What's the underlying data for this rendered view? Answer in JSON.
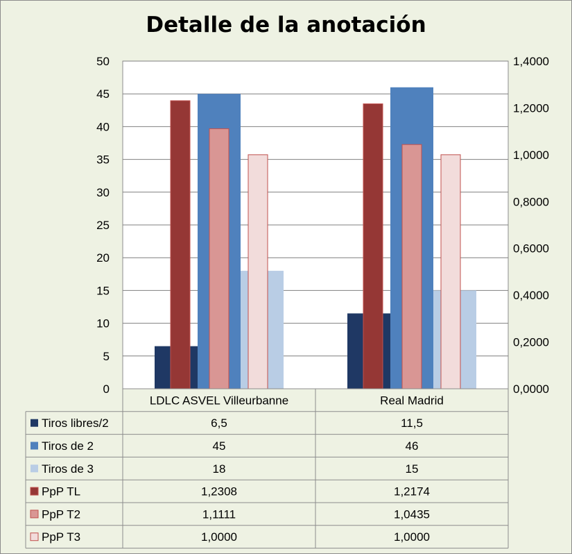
{
  "chart_data": {
    "type": "bar",
    "title": "Detalle de la anotación",
    "categories": [
      "LDLC ASVEL Villeurbanne",
      "Real Madrid"
    ],
    "series": [
      {
        "name": "Tiros libres/2",
        "values": [
          6.5,
          11.5
        ],
        "labels": [
          "6,5",
          "11,5"
        ],
        "axis": "left",
        "color": "#1f3864"
      },
      {
        "name": "Tiros de 2",
        "values": [
          45,
          46
        ],
        "labels": [
          "45",
          "46"
        ],
        "axis": "left",
        "color": "#4f81bd"
      },
      {
        "name": "Tiros de 3",
        "values": [
          18,
          15
        ],
        "labels": [
          "18",
          "15"
        ],
        "axis": "left",
        "color": "#b9cde5"
      },
      {
        "name": "PpP TL",
        "values": [
          1.2308,
          1.2174
        ],
        "labels": [
          "1,2308",
          "1,2174"
        ],
        "axis": "right",
        "color": "#953735"
      },
      {
        "name": "PpP T2",
        "values": [
          1.1111,
          1.0435
        ],
        "labels": [
          "1,1111",
          "1,0435"
        ],
        "axis": "right",
        "color": "#d99694"
      },
      {
        "name": "PpP T3",
        "values": [
          1.0,
          1.0
        ],
        "labels": [
          "1,0000",
          "1,0000"
        ],
        "axis": "right",
        "color": "#f2dcdb"
      }
    ],
    "y_left": {
      "min": 0,
      "max": 50,
      "step": 5,
      "tick_labels": [
        "0",
        "5",
        "10",
        "15",
        "20",
        "25",
        "30",
        "35",
        "40",
        "45",
        "50"
      ]
    },
    "y_right": {
      "min": 0,
      "max": 1.4,
      "step": 0.2,
      "tick_labels": [
        "0,0000",
        "0,2000",
        "0,4000",
        "0,6000",
        "0,8000",
        "1,0000",
        "1,2000",
        "1,4000"
      ]
    },
    "grid": true,
    "legend": "data-table",
    "background": "#eef2e3",
    "plot_background": "#ffffff"
  }
}
